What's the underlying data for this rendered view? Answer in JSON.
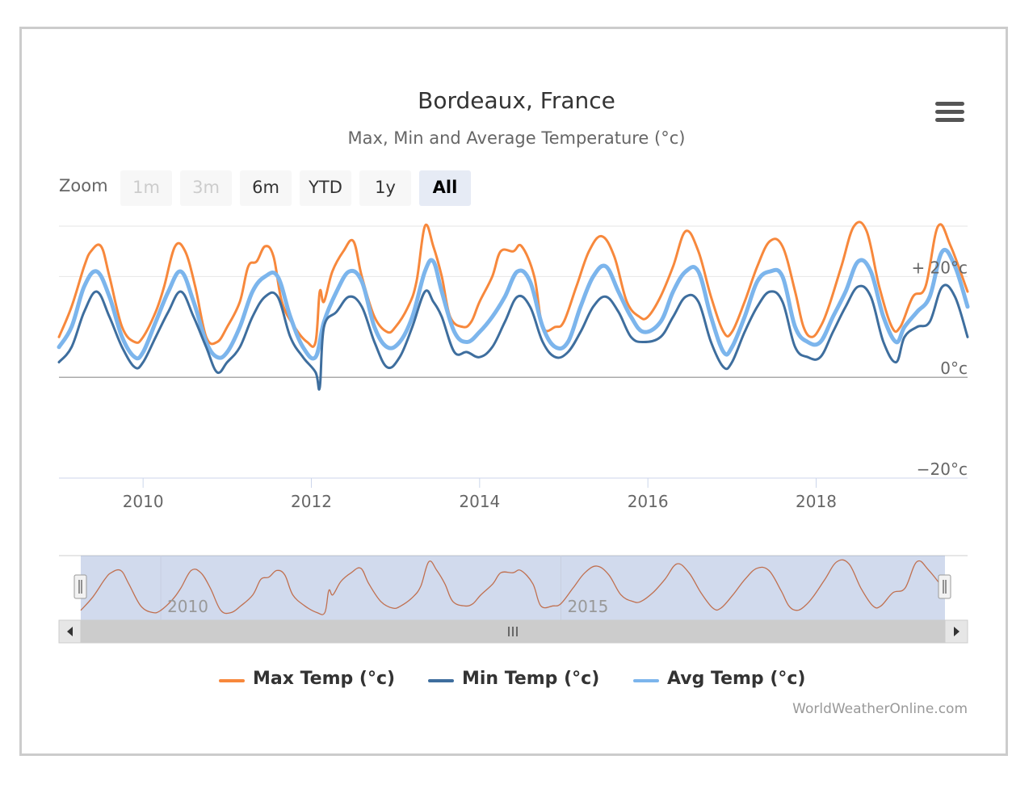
{
  "chart_data": {
    "type": "line",
    "title": "Bordeaux, France",
    "subtitle": "Max, Min and Average Temperature (°c)",
    "x_range": [
      2009.0,
      2019.8
    ],
    "ylim": [
      -20,
      30
    ],
    "y_ticks": [
      {
        "value": 20,
        "label": "+ 20°c"
      },
      {
        "value": 0,
        "label": "0°c"
      },
      {
        "value": -20,
        "label": "−20°c"
      }
    ],
    "x_ticks": [
      "2010",
      "2012",
      "2014",
      "2016",
      "2018"
    ],
    "navigator_ticks": [
      "2010",
      "2015"
    ],
    "series": [
      {
        "name": "Max Temp (°c)",
        "color": "#f7883c",
        "x": [
          2009.0,
          2009.15,
          2009.3,
          2009.38,
          2009.5,
          2009.6,
          2009.75,
          2009.9,
          2010.0,
          2010.15,
          2010.25,
          2010.38,
          2010.5,
          2010.62,
          2010.75,
          2010.88,
          2011.0,
          2011.15,
          2011.25,
          2011.35,
          2011.45,
          2011.55,
          2011.65,
          2011.8,
          2011.95,
          2012.05,
          2012.1,
          2012.15,
          2012.25,
          2012.38,
          2012.5,
          2012.6,
          2012.75,
          2012.9,
          2013.0,
          2013.15,
          2013.25,
          2013.35,
          2013.45,
          2013.55,
          2013.65,
          2013.8,
          2013.9,
          2014.0,
          2014.15,
          2014.25,
          2014.4,
          2014.5,
          2014.65,
          2014.75,
          2014.9,
          2015.0,
          2015.15,
          2015.3,
          2015.45,
          2015.6,
          2015.75,
          2015.9,
          2016.0,
          2016.15,
          2016.3,
          2016.45,
          2016.6,
          2016.75,
          2016.9,
          2017.0,
          2017.15,
          2017.3,
          2017.45,
          2017.6,
          2017.75,
          2017.85,
          2017.95,
          2018.05,
          2018.15,
          2018.3,
          2018.45,
          2018.6,
          2018.75,
          2018.9,
          2019.0,
          2019.15,
          2019.3,
          2019.45,
          2019.6,
          2019.8
        ],
        "values": [
          8,
          14,
          22,
          25,
          26,
          20,
          10,
          7,
          8,
          13,
          18,
          26,
          25,
          18,
          8,
          7,
          10,
          15,
          22,
          23,
          26,
          24,
          15,
          10,
          7,
          7,
          17,
          15,
          21,
          25,
          27,
          20,
          12,
          9,
          10,
          14,
          19,
          30,
          26,
          20,
          12,
          10,
          11,
          15,
          20,
          25,
          25,
          26,
          20,
          10,
          10,
          11,
          18,
          25,
          28,
          24,
          15,
          12,
          12,
          16,
          22,
          29,
          25,
          16,
          9,
          9,
          15,
          22,
          27,
          26,
          17,
          10,
          8,
          10,
          14,
          22,
          30,
          29,
          18,
          10,
          10,
          16,
          18,
          30,
          26,
          17
        ]
      },
      {
        "name": "Min Temp (°c)",
        "color": "#3e6e9e",
        "x": [
          2009.0,
          2009.15,
          2009.3,
          2009.45,
          2009.6,
          2009.75,
          2009.9,
          2010.0,
          2010.15,
          2010.3,
          2010.45,
          2010.6,
          2010.75,
          2010.88,
          2011.0,
          2011.15,
          2011.3,
          2011.45,
          2011.6,
          2011.75,
          2011.9,
          2012.05,
          2012.1,
          2012.15,
          2012.3,
          2012.45,
          2012.6,
          2012.75,
          2012.9,
          2013.05,
          2013.2,
          2013.35,
          2013.45,
          2013.55,
          2013.7,
          2013.85,
          2014.0,
          2014.15,
          2014.3,
          2014.45,
          2014.6,
          2014.75,
          2014.9,
          2015.05,
          2015.2,
          2015.35,
          2015.5,
          2015.65,
          2015.8,
          2015.95,
          2016.15,
          2016.3,
          2016.45,
          2016.6,
          2016.75,
          2016.9,
          2017.0,
          2017.15,
          2017.3,
          2017.45,
          2017.6,
          2017.75,
          2017.9,
          2018.05,
          2018.2,
          2018.35,
          2018.5,
          2018.65,
          2018.8,
          2018.95,
          2019.05,
          2019.2,
          2019.35,
          2019.5,
          2019.65,
          2019.8
        ],
        "values": [
          3,
          6,
          13,
          17,
          12,
          6,
          2,
          3,
          8,
          13,
          17,
          12,
          6,
          1,
          3,
          6,
          12,
          16,
          16,
          8,
          4,
          1,
          -2,
          10,
          13,
          16,
          14,
          7,
          2,
          4,
          10,
          17,
          15,
          12,
          5,
          5,
          4,
          6,
          11,
          16,
          14,
          7,
          4,
          5,
          9,
          14,
          16,
          13,
          8,
          7,
          8,
          12,
          16,
          15,
          7,
          2,
          3,
          9,
          14,
          17,
          15,
          6,
          4,
          4,
          9,
          14,
          18,
          16,
          7,
          3,
          8,
          10,
          11,
          18,
          16,
          8
        ]
      },
      {
        "name": "Avg Temp (°c)",
        "color": "#7cb5ec",
        "x": [
          2009.0,
          2009.15,
          2009.3,
          2009.45,
          2009.6,
          2009.75,
          2009.9,
          2010.0,
          2010.15,
          2010.3,
          2010.45,
          2010.6,
          2010.75,
          2010.88,
          2011.0,
          2011.15,
          2011.3,
          2011.45,
          2011.6,
          2011.75,
          2011.9,
          2012.05,
          2012.15,
          2012.3,
          2012.45,
          2012.6,
          2012.75,
          2012.9,
          2013.05,
          2013.2,
          2013.35,
          2013.45,
          2013.55,
          2013.7,
          2013.85,
          2014.0,
          2014.15,
          2014.3,
          2014.45,
          2014.6,
          2014.75,
          2014.9,
          2015.05,
          2015.2,
          2015.35,
          2015.5,
          2015.65,
          2015.8,
          2015.95,
          2016.15,
          2016.3,
          2016.45,
          2016.6,
          2016.75,
          2016.9,
          2017.0,
          2017.15,
          2017.3,
          2017.45,
          2017.6,
          2017.75,
          2017.9,
          2018.05,
          2018.2,
          2018.35,
          2018.5,
          2018.65,
          2018.8,
          2018.95,
          2019.05,
          2019.2,
          2019.35,
          2019.5,
          2019.65,
          2019.8
        ],
        "values": [
          6,
          10,
          18,
          21,
          16,
          8,
          4,
          5,
          11,
          17,
          21,
          15,
          7,
          4,
          5,
          10,
          17,
          20,
          20,
          12,
          6,
          4,
          11,
          17,
          21,
          19,
          10,
          6,
          7,
          12,
          21,
          23,
          17,
          9,
          7,
          9,
          12,
          16,
          21,
          19,
          10,
          6,
          7,
          14,
          20,
          22,
          17,
          12,
          9,
          11,
          17,
          21,
          21,
          12,
          5,
          6,
          12,
          19,
          21,
          20,
          10,
          7,
          7,
          12,
          17,
          23,
          21,
          12,
          7,
          10,
          13,
          16,
          25,
          22,
          14
        ]
      }
    ]
  },
  "range_selector": {
    "label": "Zoom",
    "buttons": [
      {
        "label": "1m",
        "state": "disabled"
      },
      {
        "label": "3m",
        "state": "disabled"
      },
      {
        "label": "6m",
        "state": "normal"
      },
      {
        "label": "YTD",
        "state": "normal"
      },
      {
        "label": "1y",
        "state": "normal"
      },
      {
        "label": "All",
        "state": "active"
      }
    ]
  },
  "menu": {
    "icon": "hamburger-menu-icon"
  },
  "scrollbar": {
    "grip_icon": "scrollbar-grip-icon",
    "left_arrow": "arrow-left-icon",
    "right_arrow": "arrow-right-icon"
  },
  "credits": "WorldWeatherOnline.com"
}
